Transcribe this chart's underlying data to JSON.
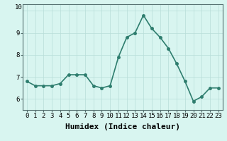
{
  "x": [
    0,
    1,
    2,
    3,
    4,
    5,
    6,
    7,
    8,
    9,
    10,
    11,
    12,
    13,
    14,
    15,
    16,
    17,
    18,
    19,
    20,
    21,
    22,
    23
  ],
  "y": [
    6.8,
    6.6,
    6.6,
    6.6,
    6.7,
    7.1,
    7.1,
    7.1,
    6.6,
    6.5,
    6.6,
    7.9,
    8.8,
    9.0,
    9.8,
    9.2,
    8.8,
    8.3,
    7.6,
    6.8,
    5.9,
    6.1,
    6.5,
    6.5
  ],
  "line_color": "#2e7d6e",
  "marker": "o",
  "marker_size": 2.5,
  "bg_color": "#d8f5f0",
  "grid_color": "#b8ddd8",
  "xlabel": "Humidex (Indice chaleur)",
  "xlabel_fontsize": 8,
  "ylim": [
    5.5,
    10.3
  ],
  "yticks": [
    6,
    7,
    8,
    9
  ],
  "xlim": [
    -0.5,
    23.5
  ],
  "xticks": [
    0,
    1,
    2,
    3,
    4,
    5,
    6,
    7,
    8,
    9,
    10,
    11,
    12,
    13,
    14,
    15,
    16,
    17,
    18,
    19,
    20,
    21,
    22,
    23
  ],
  "tick_fontsize": 6.5,
  "line_width": 1.2,
  "spine_color": "#557070"
}
